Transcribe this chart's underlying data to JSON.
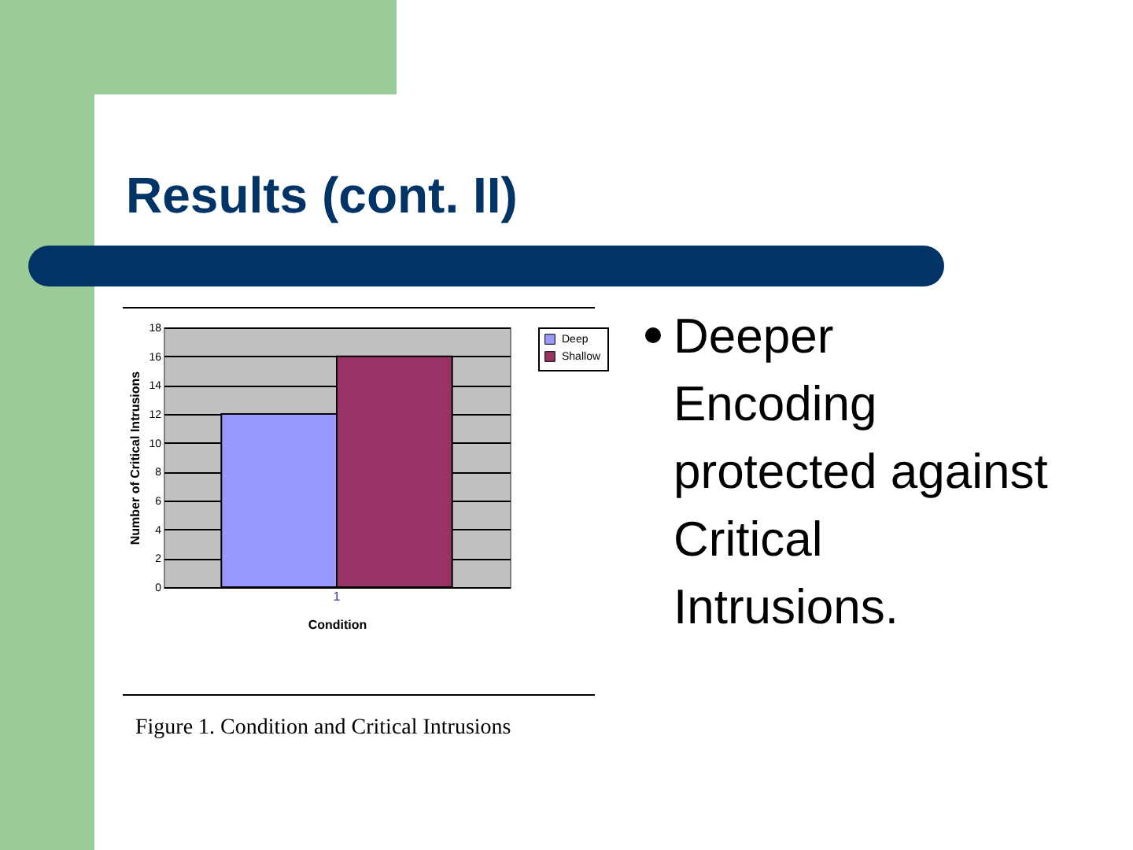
{
  "chart_data": {
    "type": "bar",
    "title": "Results (cont. II)",
    "annotations": [
      "Deeper Encoding protected against Critical Intrusions.",
      "Figure 1.  Condition and Critical Intrusions"
    ],
    "xlabel": "Condition",
    "ylabel": "Number of Critical Intrusions",
    "categories": [
      "1"
    ],
    "series": [
      {
        "name": "Deep",
        "color": "#9999ff",
        "values": [
          12
        ]
      },
      {
        "name": "Shallow",
        "color": "#993366",
        "values": [
          16
        ]
      }
    ],
    "ylim": [
      0,
      18
    ],
    "yticks": [
      0,
      2,
      4,
      6,
      8,
      10,
      12,
      14,
      16,
      18
    ],
    "grid": "y",
    "legend": "right"
  }
}
